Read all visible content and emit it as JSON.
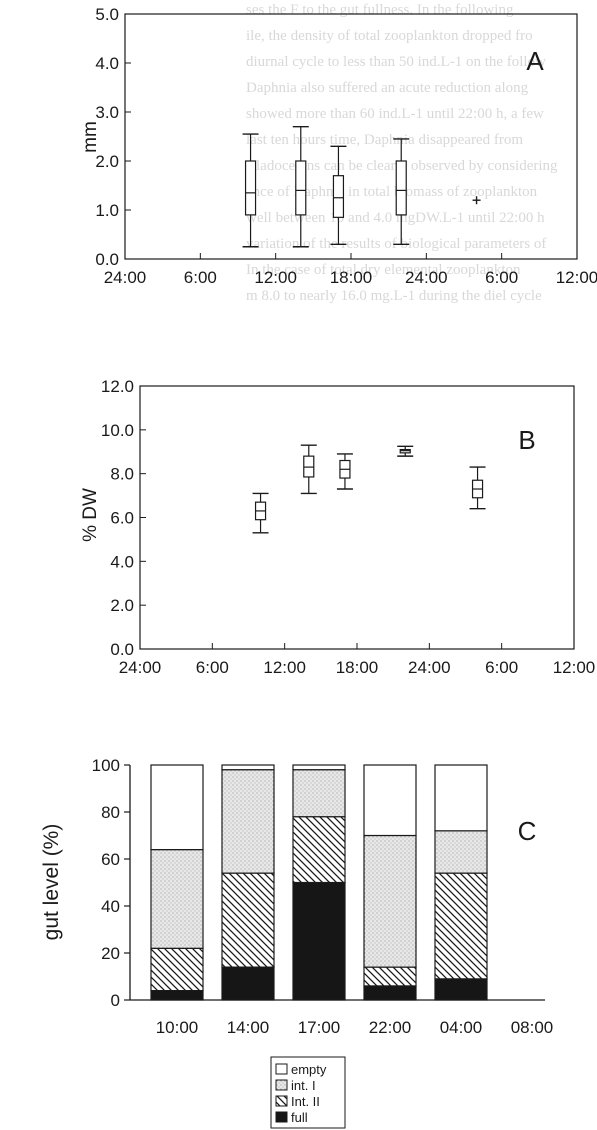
{
  "background_text": [
    "ses the F to the gut fullness. In the following",
    "ile, the density of total zooplankton dropped fro",
    "diurnal cycle to less than 50 ind.L-1 on the follow",
    "Daphnia also suffered an acute reduction along",
    "showed more than 60 ind.L-1 until 22:00 h, a few",
    "last ten hours time, Daphnia disappeared from",
    "Cladocerans can be clearly observed by considering",
    "ance of Daphnia in total biomass of zooplankton",
    "well between 10 and 4.0 mgDW.L-1 until 22:00 h",
    "variation of the results of biological parameters of",
    "In the case of total dry elemental zooplankton",
    "m 8.0 to nearly 16.0 mg.L-1 during the diel cycle"
  ],
  "chart_data": [
    {
      "panel": "A",
      "type": "box",
      "ylabel": "mm",
      "ylim": [
        0,
        5
      ],
      "yticks": [
        "0.0",
        "1.0",
        "2.0",
        "3.0",
        "4.0",
        "5.0"
      ],
      "xticks": [
        "24:00",
        "6:00",
        "12:00",
        "18:00",
        "24:00",
        "6:00",
        "12:00"
      ],
      "xlim_hours": [
        0,
        36
      ],
      "grid": false,
      "boxes": [
        {
          "x_hour": 10,
          "min": 0.25,
          "q1": 0.9,
          "median": 1.35,
          "q3": 2.0,
          "max": 2.55
        },
        {
          "x_hour": 14,
          "min": 0.25,
          "q1": 0.9,
          "median": 1.4,
          "q3": 2.0,
          "max": 2.7
        },
        {
          "x_hour": 17,
          "min": 0.3,
          "q1": 0.85,
          "median": 1.25,
          "q3": 1.7,
          "max": 2.3
        },
        {
          "x_hour": 22,
          "min": 0.3,
          "q1": 0.9,
          "median": 1.4,
          "q3": 2.0,
          "max": 2.45
        },
        {
          "x_hour": 28,
          "min": 1.2,
          "q1": 1.2,
          "median": 1.2,
          "q3": 1.2,
          "max": 1.2
        }
      ]
    },
    {
      "panel": "B",
      "type": "box",
      "ylabel": "% DW",
      "ylim": [
        0,
        12
      ],
      "yticks": [
        "0.0",
        "2.0",
        "4.0",
        "6.0",
        "8.0",
        "10.0",
        "12.0"
      ],
      "xticks": [
        "24:00",
        "6:00",
        "12:00",
        "18:00",
        "24:00",
        "6:00",
        "12:00"
      ],
      "xlim_hours": [
        0,
        36
      ],
      "grid": false,
      "boxes": [
        {
          "x_hour": 10,
          "min": 5.3,
          "q1": 5.9,
          "median": 6.3,
          "q3": 6.7,
          "max": 7.1
        },
        {
          "x_hour": 14,
          "min": 7.1,
          "q1": 7.85,
          "median": 8.3,
          "q3": 8.8,
          "max": 9.3
        },
        {
          "x_hour": 17,
          "min": 7.3,
          "q1": 7.8,
          "median": 8.2,
          "q3": 8.6,
          "max": 8.9
        },
        {
          "x_hour": 22,
          "min": 8.8,
          "q1": 8.95,
          "median": 9.05,
          "q3": 9.1,
          "max": 9.25
        },
        {
          "x_hour": 28,
          "min": 6.4,
          "q1": 6.9,
          "median": 7.3,
          "q3": 7.7,
          "max": 8.3
        }
      ]
    },
    {
      "panel": "C",
      "type": "bar",
      "stacked": true,
      "ylabel": "gut level (%)",
      "ylim": [
        0,
        100
      ],
      "yticks": [
        "0",
        "20",
        "40",
        "60",
        "80",
        "100"
      ],
      "categories": [
        "10:00",
        "14:00",
        "17:00",
        "22:00",
        "04:00",
        "08:00"
      ],
      "legend_position": "bottom",
      "series": [
        {
          "name": "full",
          "pattern": "solid",
          "values": [
            4,
            14,
            50,
            6,
            9,
            0
          ]
        },
        {
          "name": "Int. II",
          "pattern": "hatch",
          "values": [
            18,
            40,
            28,
            8,
            45,
            0
          ]
        },
        {
          "name": "int. I",
          "pattern": "stipple",
          "values": [
            42,
            44,
            20,
            56,
            18,
            0
          ]
        },
        {
          "name": "empty",
          "pattern": "white",
          "values": [
            36,
            2,
            2,
            30,
            28,
            0
          ]
        }
      ]
    }
  ],
  "colors": {
    "ink": "#1a1a1a",
    "stipple_bg": "#e8e8e8",
    "full": "#161616",
    "faint": "#d8d8d8"
  }
}
